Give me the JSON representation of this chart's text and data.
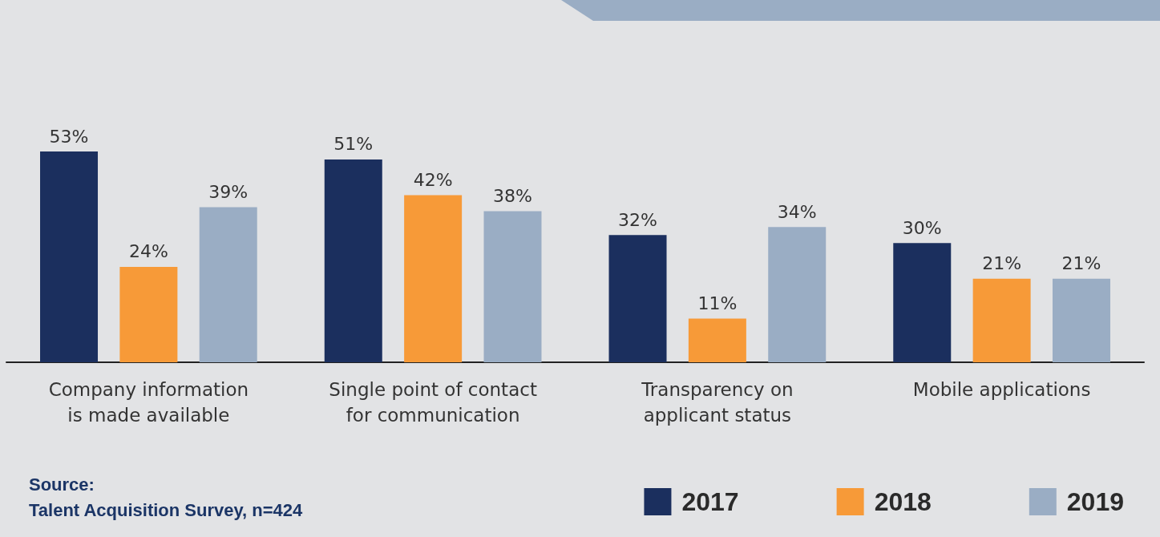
{
  "chart_data": {
    "type": "bar",
    "categories": [
      "Company information\nis made available",
      "Single point of contact\nfor communication",
      "Transparency on\napplicant status",
      "Mobile applications"
    ],
    "series": [
      {
        "name": "2017",
        "color": "#1b2f5e",
        "values": [
          53,
          51,
          32,
          30
        ],
        "value_labels": [
          "53%",
          "51%",
          "32%",
          "30%"
        ]
      },
      {
        "name": "2018",
        "color": "#f79a38",
        "values": [
          24,
          42,
          11,
          21
        ],
        "value_labels": [
          "24%",
          "42%",
          "11%",
          "21%"
        ]
      },
      {
        "name": "2019",
        "color": "#9aadc4",
        "values": [
          39,
          38,
          34,
          21
        ],
        "value_labels": [
          "39%",
          "38%",
          "34%",
          "21%"
        ]
      }
    ],
    "legend": "bottom right",
    "annotations": [
      "Source:\nTalent Acquisition Survey, n=424"
    ]
  }
}
